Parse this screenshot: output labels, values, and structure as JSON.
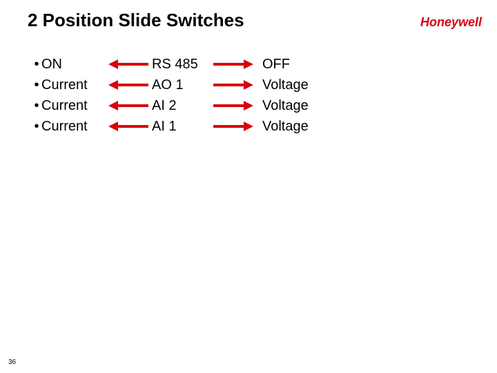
{
  "title": "2 Position Slide Switches",
  "brand": "Honeywell",
  "pageNumber": "36",
  "colors": {
    "arrow": "#d9000d"
  },
  "rows": [
    {
      "left": "ON",
      "center": "RS 485",
      "right": "OFF"
    },
    {
      "left": "Current",
      "center": "AO 1",
      "right": "Voltage"
    },
    {
      "left": "Current",
      "center": "AI 2",
      "right": "Voltage"
    },
    {
      "left": "Current",
      "center": "AI 1",
      "right": "Voltage"
    }
  ]
}
